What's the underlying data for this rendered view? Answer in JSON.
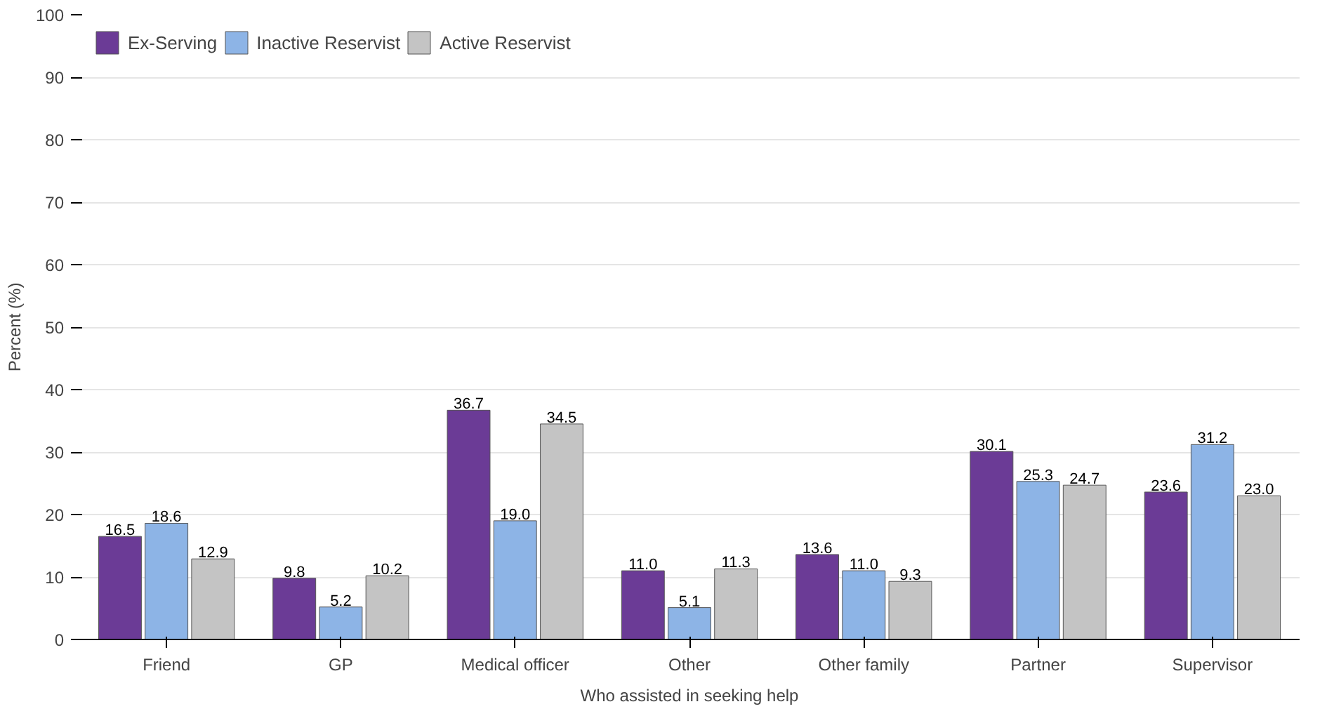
{
  "chart_data": {
    "type": "bar",
    "xlabel": "Who assisted in seeking help",
    "ylabel": "Percent (%)",
    "categories": [
      "Friend",
      "GP",
      "Medical officer",
      "Other",
      "Other family",
      "Partner",
      "Supervisor"
    ],
    "series": [
      {
        "name": "Ex-Serving",
        "color": "#6b3b96",
        "values": [
          16.5,
          9.8,
          36.7,
          11.0,
          13.6,
          30.1,
          23.6
        ],
        "value_labels": [
          "16.5",
          "9.8",
          "36.7",
          "11.0",
          "13.6",
          "30.1",
          "23.6"
        ]
      },
      {
        "name": "Inactive Reservist",
        "color": "#8db4e6",
        "values": [
          18.6,
          5.2,
          19.0,
          5.1,
          11.0,
          25.3,
          31.2
        ],
        "value_labels": [
          "18.6",
          "5.2",
          "19.0",
          "5.1",
          "11.0",
          "25.3",
          "31.2"
        ]
      },
      {
        "name": "Active Reservist",
        "color": "#c4c4c4",
        "values": [
          12.9,
          10.2,
          34.5,
          11.3,
          9.3,
          24.7,
          23.0
        ],
        "value_labels": [
          "12.9",
          "10.2",
          "34.5",
          "11.3",
          "9.3",
          "24.7",
          "23.0"
        ]
      }
    ],
    "ylim": [
      0,
      100
    ],
    "yticks": [
      0,
      10,
      20,
      30,
      40,
      50,
      60,
      70,
      80,
      90,
      100
    ],
    "grid": "y",
    "legend": "top left"
  }
}
